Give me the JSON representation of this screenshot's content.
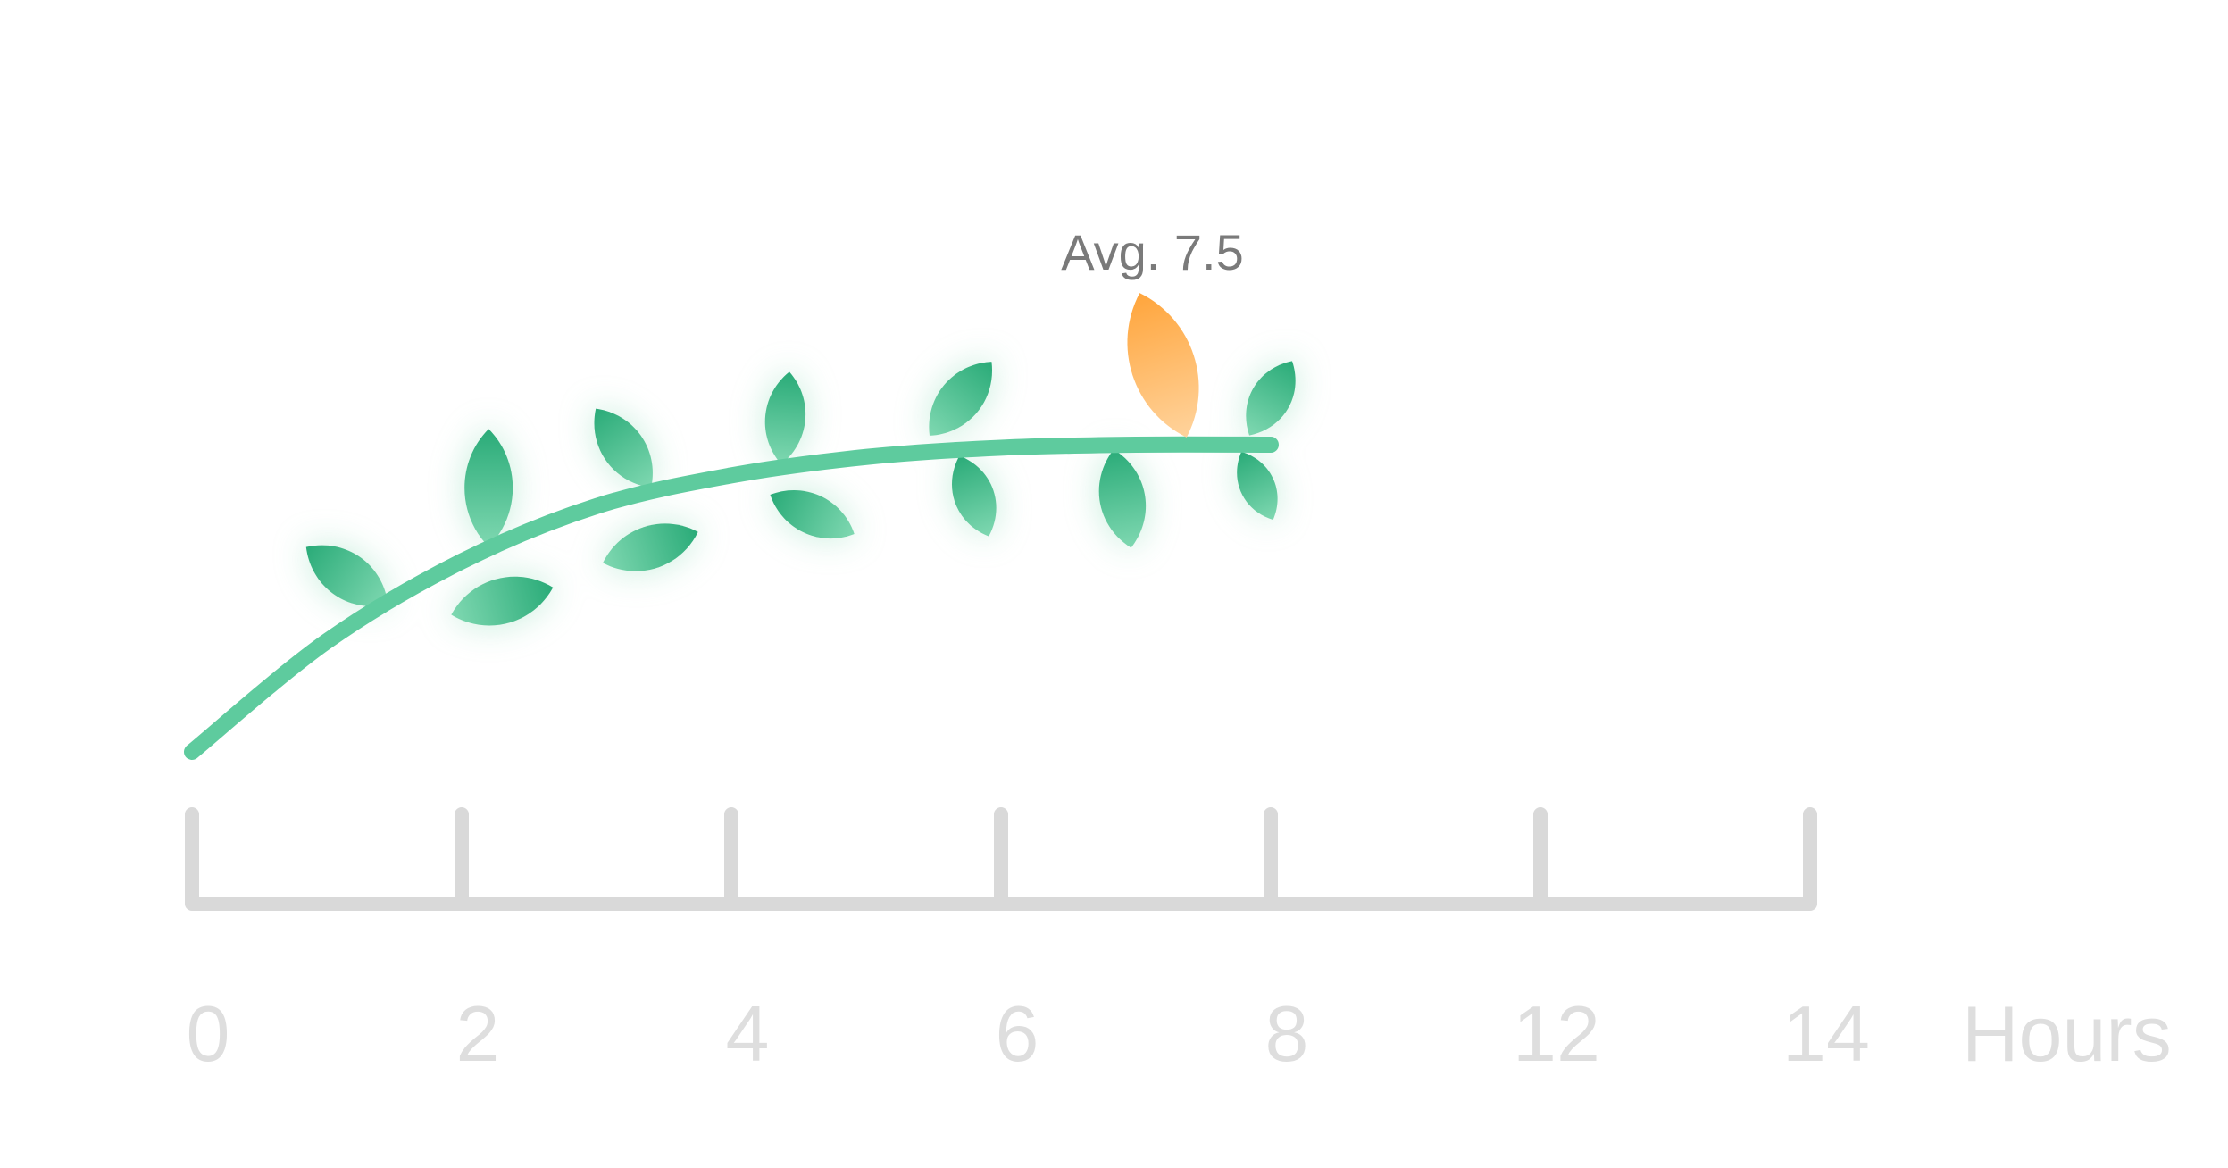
{
  "chart_data": {
    "type": "line",
    "title": "",
    "xlabel": "Hours",
    "ylabel": "",
    "x_ticks": [
      {
        "value": 0,
        "label": "0"
      },
      {
        "value": 2,
        "label": "2"
      },
      {
        "value": 4,
        "label": "4"
      },
      {
        "value": 6,
        "label": "6"
      },
      {
        "value": 8,
        "label": "8"
      },
      {
        "value": 12,
        "label": "12"
      },
      {
        "value": 14,
        "label": "14"
      }
    ],
    "curve": {
      "x": [
        0,
        1,
        2,
        3,
        4,
        5,
        6,
        7,
        8
      ],
      "y": [
        0,
        0.36,
        0.62,
        0.8,
        0.9,
        0.96,
        0.99,
        1.0,
        1.0
      ]
    },
    "average": {
      "label": "Avg. 7.5",
      "x": 7.5
    },
    "grid": false,
    "colors": {
      "branch": "#5ecb9e",
      "leaf": "#2eb37f",
      "leaf_glow": "#a6e3c7",
      "highlight_leaf": "#ffad4d",
      "axis": "#d9d9d9",
      "tick_label": "#dedede",
      "annotation": "#7a7a7a"
    }
  }
}
